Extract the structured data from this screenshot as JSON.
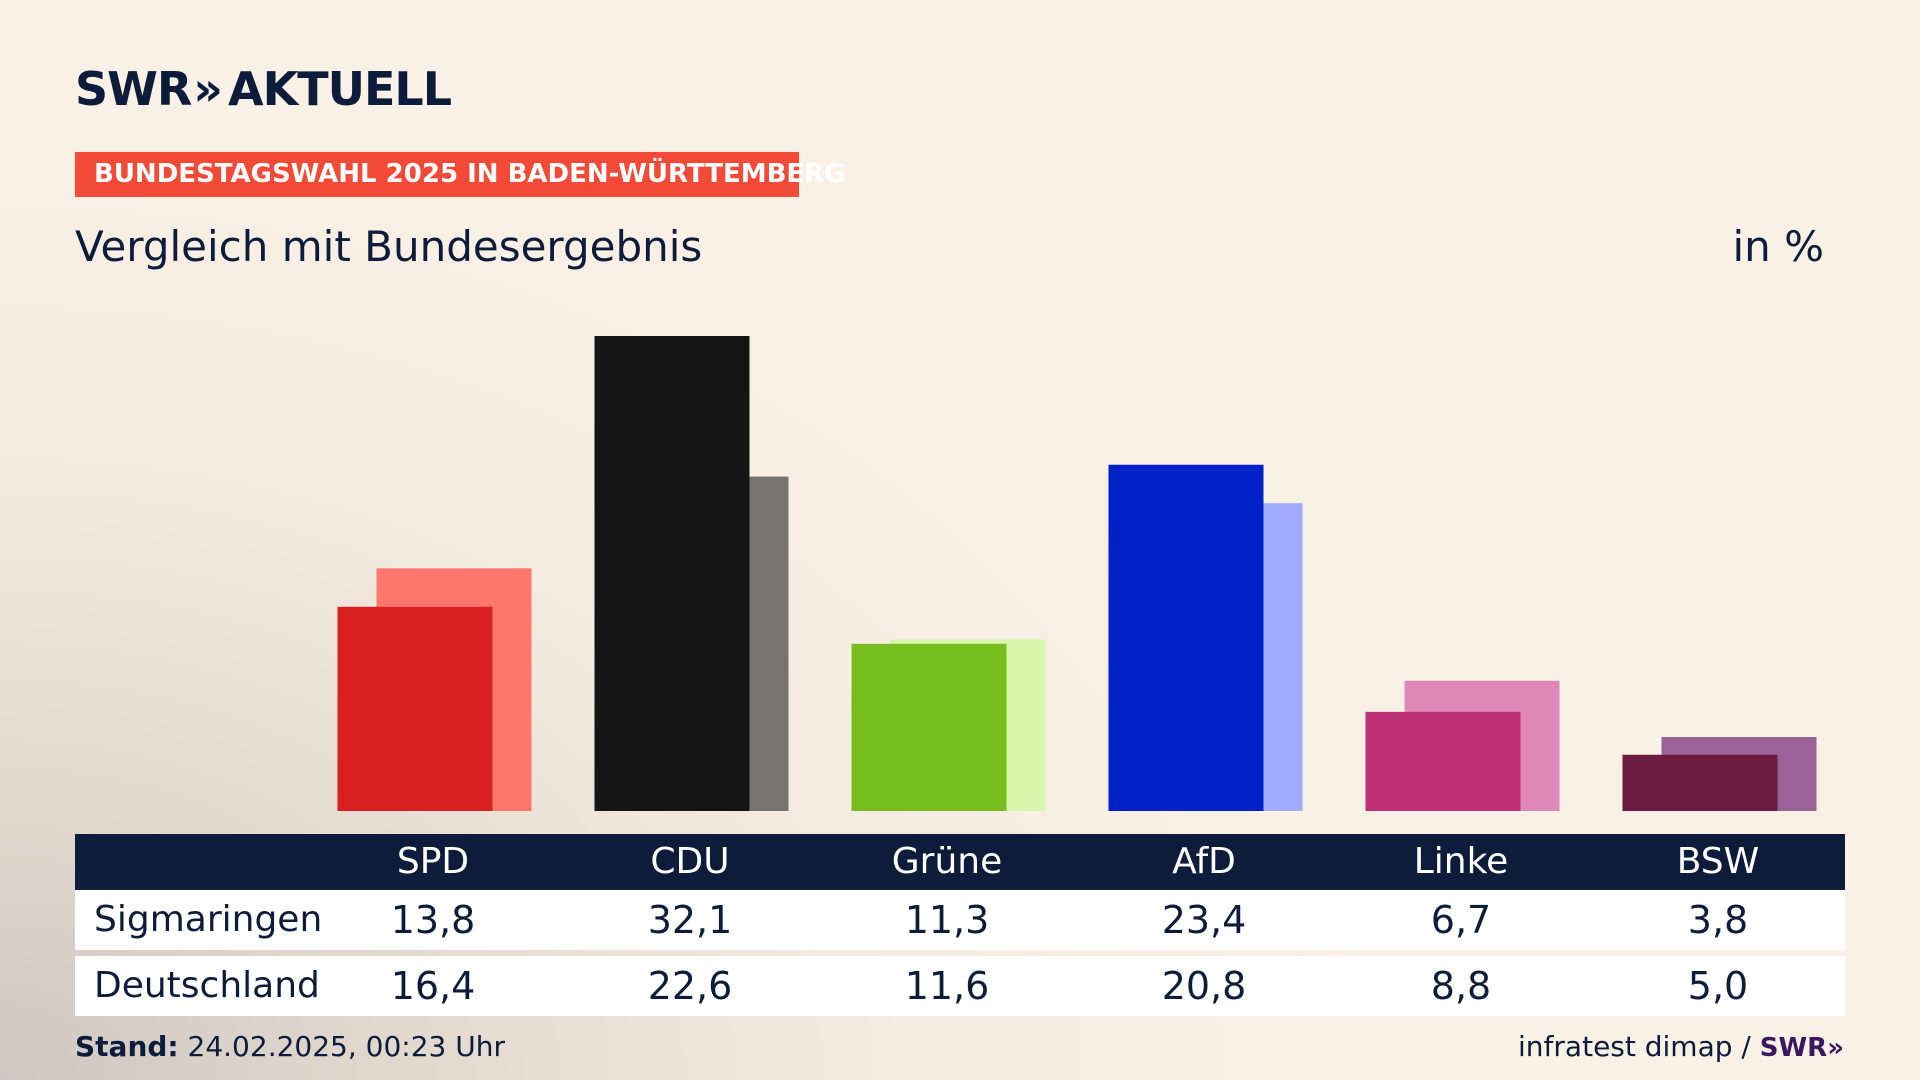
{
  "brand": {
    "swr": "SWR",
    "chevrons": "»",
    "aktuell": "AKTUELL"
  },
  "tag": "BUNDESTAGSWAHL 2025 IN BADEN-WÜRTTEMBERG",
  "subtitle": "Vergleich mit Bundesergebnis",
  "unit": "in %",
  "chart_data": {
    "type": "bar",
    "categories": [
      "SPD",
      "CDU",
      "Grüne",
      "AfD",
      "Linke",
      "BSW"
    ],
    "series": [
      {
        "name": "Sigmaringen",
        "values": [
          13.8,
          32.1,
          11.3,
          23.4,
          6.7,
          3.8
        ],
        "colors": [
          "#d7201f",
          "#141414",
          "#78bd1e",
          "#0021c8",
          "#bd3075",
          "#6b1a40"
        ]
      },
      {
        "name": "Deutschland",
        "values": [
          16.4,
          22.6,
          11.6,
          20.8,
          8.8,
          5.0
        ],
        "colors": [
          "#ff776c",
          "#767370",
          "#d9f7ab",
          "#a0adff",
          "#de88b7",
          "#9a6397"
        ]
      }
    ],
    "display_values": [
      [
        "13,8",
        "32,1",
        "11,3",
        "23,4",
        "6,7",
        "3,8"
      ],
      [
        "16,4",
        "22,6",
        "11,6",
        "20,8",
        "8,8",
        "5,0"
      ]
    ],
    "ylim": [
      0,
      32.1
    ],
    "grid": false
  },
  "table": {
    "header": [
      "SPD",
      "CDU",
      "Grüne",
      "AfD",
      "Linke",
      "BSW"
    ],
    "rows": [
      {
        "label": "Sigmaringen",
        "values": [
          "13,8",
          "32,1",
          "11,3",
          "23,4",
          "6,7",
          "3,8"
        ]
      },
      {
        "label": "Deutschland",
        "values": [
          "16,4",
          "22,6",
          "11,6",
          "20,8",
          "8,8",
          "5,0"
        ]
      }
    ]
  },
  "footer": {
    "stand_label": "Stand:",
    "stand_value": "24.02.2025, 00:23 Uhr",
    "source": "infratest dimap /",
    "source_brand": "SWR",
    "source_chevrons": "»"
  }
}
